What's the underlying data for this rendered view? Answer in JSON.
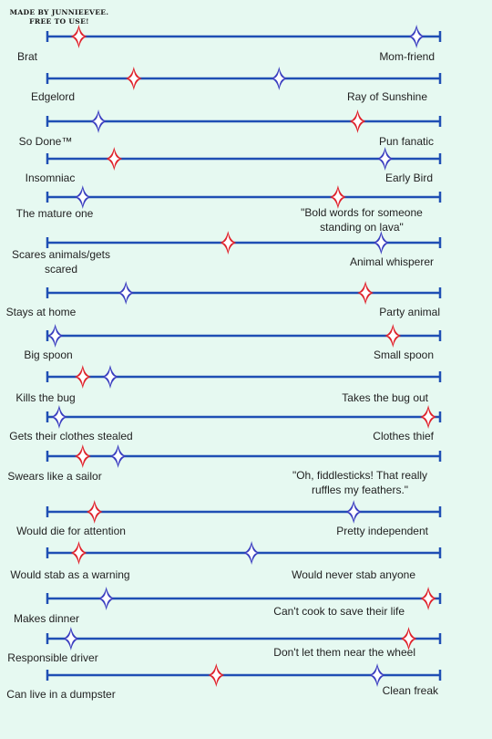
{
  "credit": {
    "line1": "MADE BY JUNNIEEVEE.",
    "line2": "FREE TO USE!"
  },
  "colors": {
    "background": "#e6f9f1",
    "line": "#1f4fb4",
    "red_marker": "#e0222b",
    "blue_marker": "#3a3ec0",
    "text": "#222222"
  },
  "scales": [
    {
      "left": "Brat",
      "right": "Mom-friend",
      "red": 0.08,
      "blue": 0.94
    },
    {
      "left": "Edgelord",
      "right": "Ray of Sunshine",
      "red": 0.22,
      "blue": 0.59
    },
    {
      "left": "So Done™",
      "right": "Pun fanatic",
      "red": 0.79,
      "blue": 0.13
    },
    {
      "left": "Insomniac",
      "right": "Early Bird",
      "red": 0.17,
      "blue": 0.86
    },
    {
      "left": "The mature one",
      "right": "\"Bold words for someone standing on lava\"",
      "red": 0.74,
      "blue": 0.09
    },
    {
      "left": "Scares animals/gets scared",
      "right": "Animal whisperer",
      "red": 0.46,
      "blue": 0.85
    },
    {
      "left": "Stays at home",
      "right": "Party animal",
      "red": 0.81,
      "blue": 0.2
    },
    {
      "left": "Big spoon",
      "right": "Small spoon",
      "red": 0.88,
      "blue": 0.02
    },
    {
      "left": "Kills the bug",
      "right": "Takes the bug out",
      "red": 0.09,
      "blue": 0.16
    },
    {
      "left": "Gets their clothes stealed",
      "right": "Clothes thief",
      "red": 0.97,
      "blue": 0.03
    },
    {
      "left": "Swears like a sailor",
      "right": "\"Oh, fiddlesticks! That really ruffles my feathers.\"",
      "red": 0.09,
      "blue": 0.18
    },
    {
      "left": "Would die for attention",
      "right": "Pretty independent",
      "red": 0.12,
      "blue": 0.78
    },
    {
      "left": "Would stab as a warning",
      "right": "Would never stab anyone",
      "red": 0.08,
      "blue": 0.52
    },
    {
      "left": "Makes dinner",
      "right": "Can't cook to save their life",
      "red": 0.97,
      "blue": 0.15
    },
    {
      "left": "Responsible driver",
      "right": "Don't let them near the wheel",
      "red": 0.92,
      "blue": 0.06
    },
    {
      "left": "Can live in a dumpster",
      "right": "Clean freak",
      "red": 0.43,
      "blue": 0.84
    }
  ]
}
